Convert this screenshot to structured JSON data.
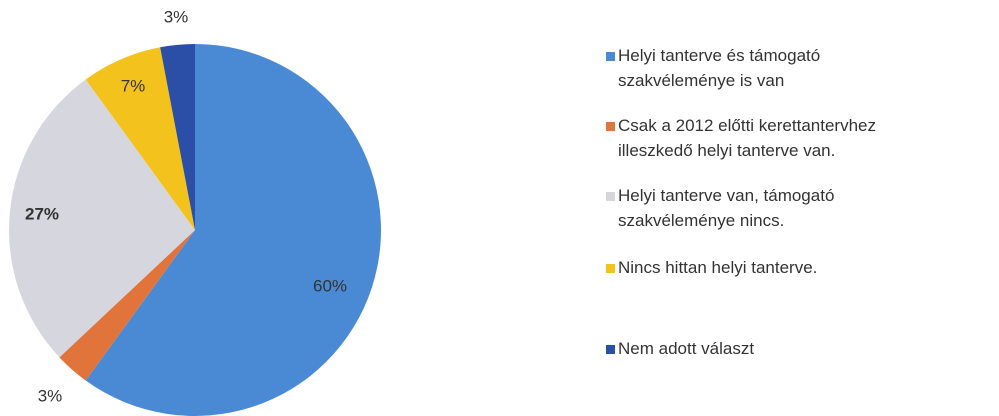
{
  "chart_data": {
    "type": "pie",
    "categories": [
      "Helyi tanterve és támogató\nszakvéleménye is van",
      "Csak a 2012 előtti kerettantervhez\nilleszkedő helyi tanterve van.",
      "Helyi tanterve van, támogató\nszakvéleménye nincs.",
      "Nincs hittan helyi tanterve.",
      "Nem adott választ"
    ],
    "values": [
      60,
      3,
      27,
      7,
      3
    ],
    "value_labels": [
      "60%",
      "3%",
      "27%",
      "7%",
      "3%"
    ],
    "colors": [
      "#4a8ad4",
      "#e0743a",
      "#d6d6de",
      "#f3c21c",
      "#2b4fa6"
    ],
    "legend": "right"
  }
}
